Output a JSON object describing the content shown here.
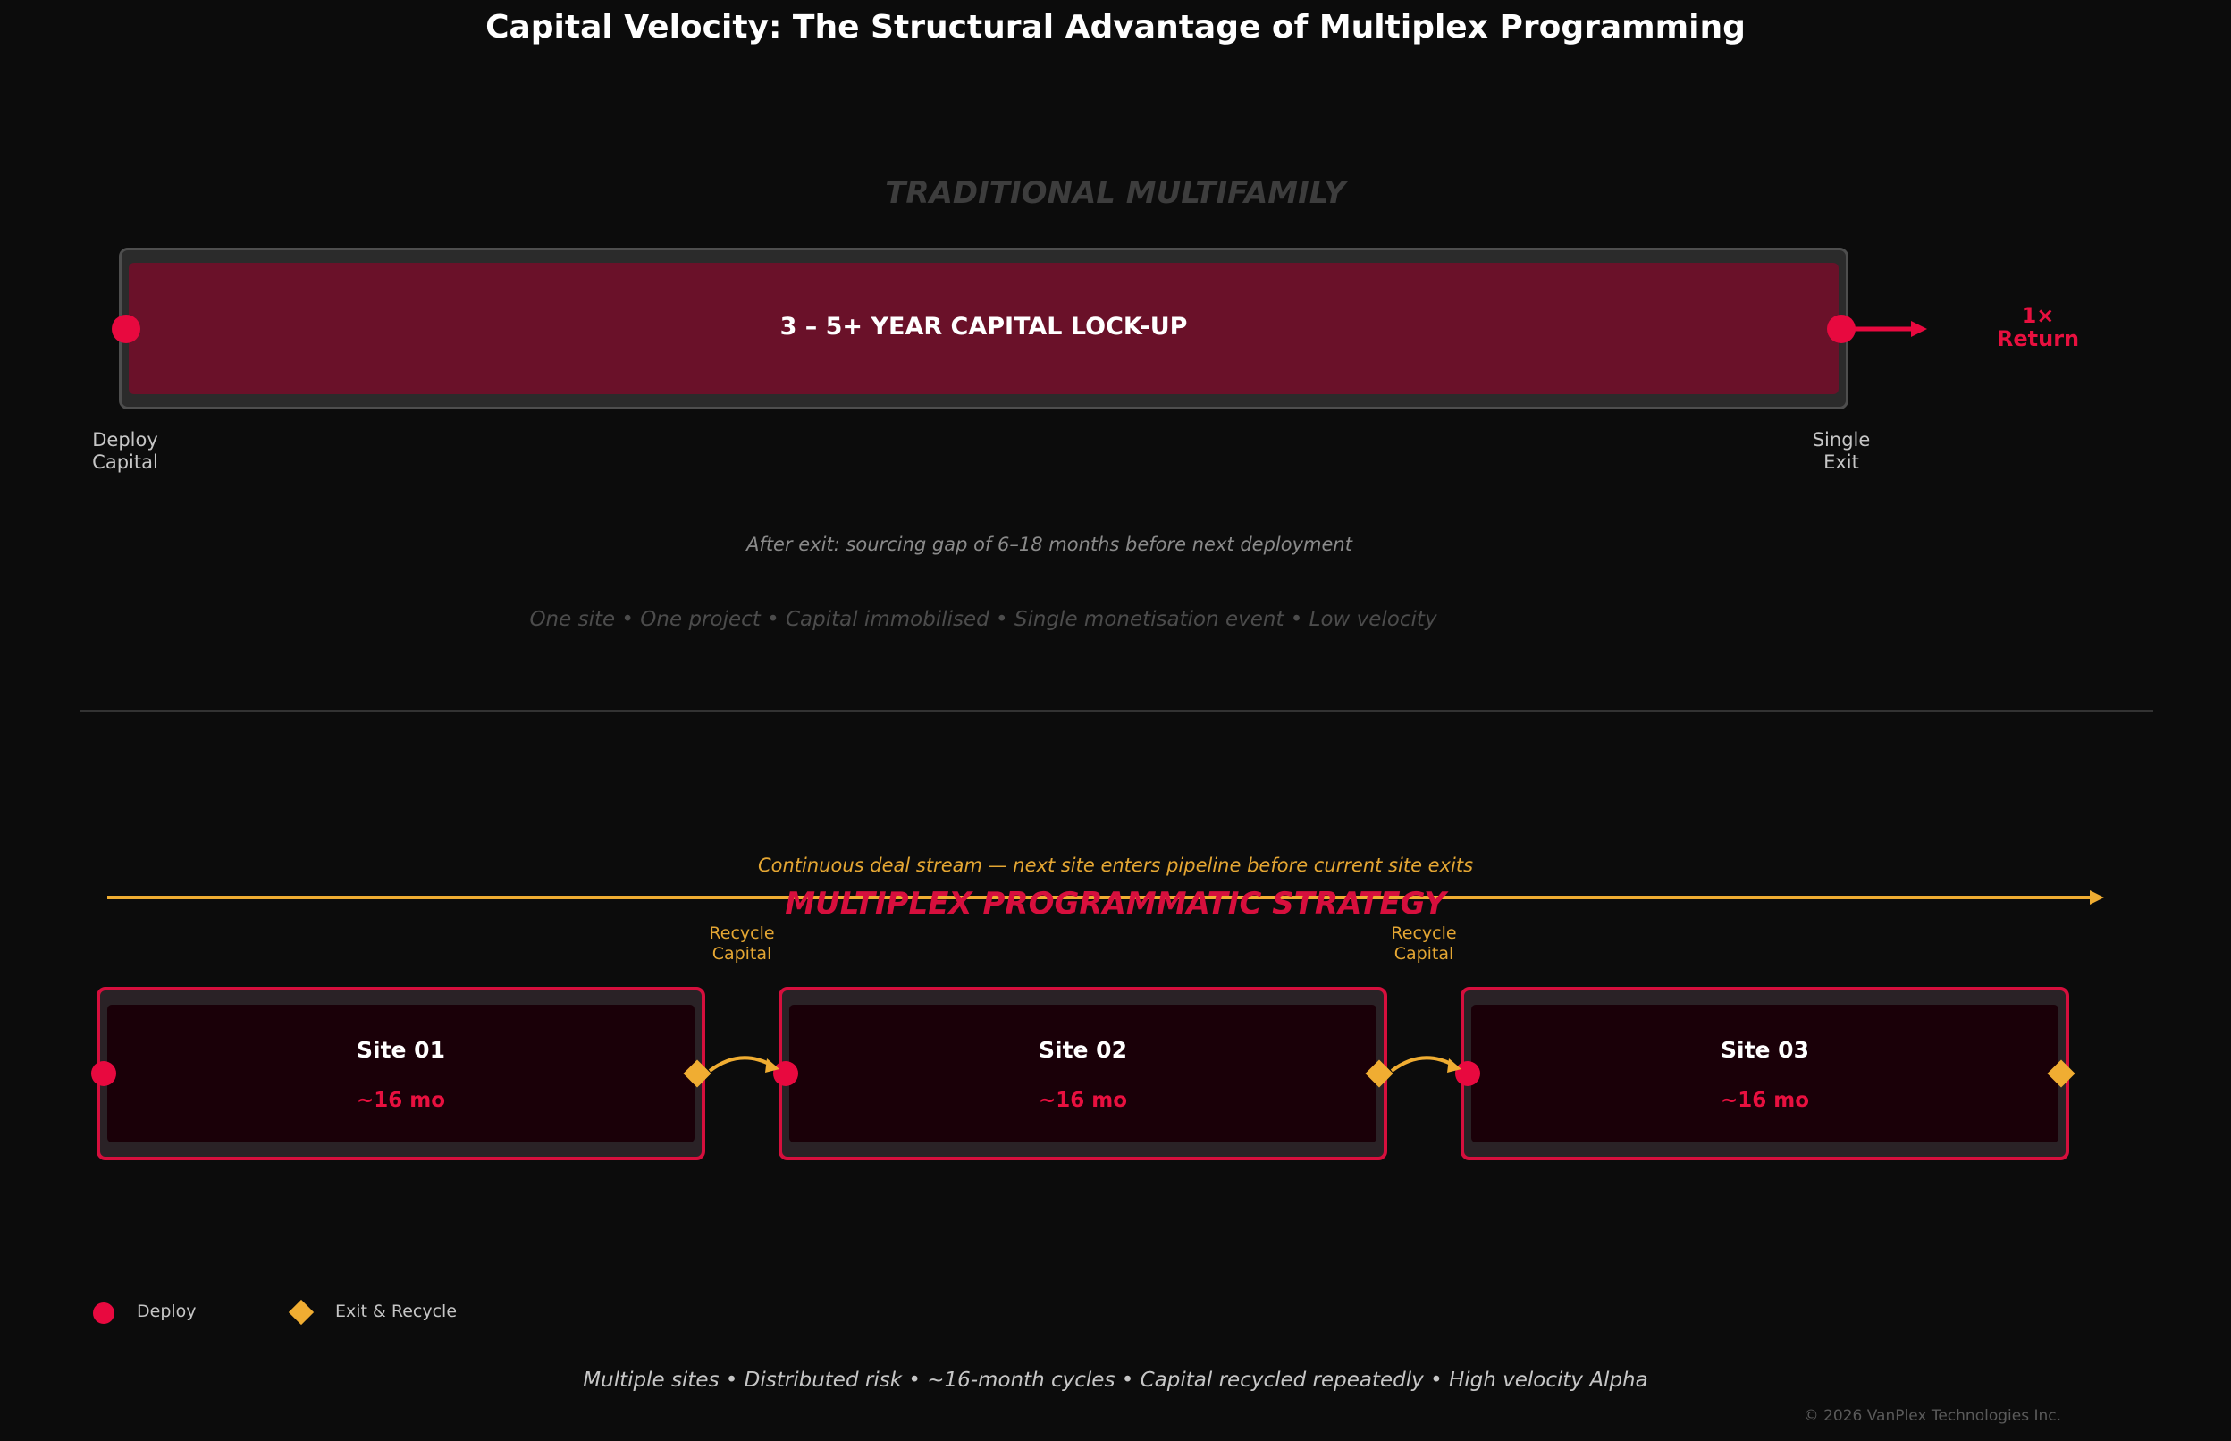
{
  "title": "Capital Velocity: The Structural Advantage of Multiplex Programming",
  "colors": {
    "background": "#0c0c0c",
    "accent_red": "#e8093f",
    "accent_gold": "#f0ad32",
    "lockup_fill": "#6a1129",
    "muted_text": "#c6c6c6"
  },
  "traditional": {
    "title": "TRADITIONAL MULTIFAMILY",
    "bar_label": "3 – 5+ YEAR CAPITAL LOCK-UP",
    "deploy_label_line1": "Deploy",
    "deploy_label_line2": "Capital",
    "exit_label_line1": "Single",
    "exit_label_line2": "Exit",
    "return_line1": "1×",
    "return_line2": "Return",
    "gap_note": "After exit: sourcing gap of 6–18 months before next deployment",
    "summary": "One site  •  One project  •  Capital immobilised  •  Single monetisation event  •  Low velocity"
  },
  "multiplex": {
    "title": "MULTIPLEX PROGRAMMATIC STRATEGY",
    "stream_note": "Continuous deal stream — next site enters pipeline before current site exits",
    "recycle_label_line1": "Recycle",
    "recycle_label_line2": "Capital",
    "sites": [
      {
        "name": "Site 01",
        "duration": "~16 mo"
      },
      {
        "name": "Site 02",
        "duration": "~16 mo"
      },
      {
        "name": "Site 03",
        "duration": "~16 mo"
      }
    ],
    "legend": {
      "deploy": "Deploy",
      "exit_recycle": "Exit & Recycle"
    },
    "summary": "Multiple sites  •  Distributed risk  •  ~16-month cycles  •  Capital recycled repeatedly  •  High velocity Alpha"
  },
  "footer": {
    "copyright": "© 2026 VanPlex Technologies Inc."
  },
  "icons": {
    "deploy_marker": "circle-icon",
    "exit_marker": "diamond-icon",
    "flow_arrow": "arrow-right-icon",
    "recycle_arrow": "curved-arrow-icon"
  }
}
